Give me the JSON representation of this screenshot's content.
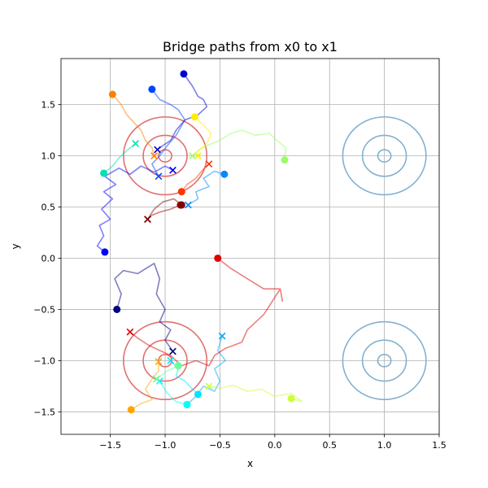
{
  "chart_data": {
    "type": "line",
    "title": "Bridge paths from x0 to x1",
    "xlabel": "x",
    "ylabel": "y",
    "xlim": [
      -1.95,
      1.5
    ],
    "ylim": [
      -1.72,
      1.95
    ],
    "x_ticks": [
      -1.5,
      -1.0,
      -0.5,
      0.0,
      0.5,
      1.0,
      1.5
    ],
    "x_tick_labels": [
      "−1.5",
      "−1.0",
      "−0.5",
      "0.0",
      "0.5",
      "1.0",
      "1.5"
    ],
    "y_ticks": [
      -1.5,
      -1.0,
      -0.5,
      0.0,
      0.5,
      1.0,
      1.5
    ],
    "y_tick_labels": [
      "−1.5",
      "−1.0",
      "−0.5",
      "0.0",
      "0.5",
      "1.0",
      "1.5"
    ],
    "grid": true,
    "contours": [
      {
        "center": [
          -1.0,
          1.0
        ],
        "radii": [
          0.06,
          0.2,
          0.38
        ],
        "color": "#e07070"
      },
      {
        "center": [
          -1.0,
          -1.0
        ],
        "radii": [
          0.06,
          0.2,
          0.38
        ],
        "color": "#e07070"
      },
      {
        "center": [
          1.0,
          1.0
        ],
        "radii": [
          0.06,
          0.2,
          0.38
        ],
        "color": "#82b1d2"
      },
      {
        "center": [
          1.0,
          -1.0
        ],
        "radii": [
          0.06,
          0.2,
          0.38
        ],
        "color": "#82b1d2"
      }
    ],
    "series": [
      {
        "color": "#0000ff",
        "start": [
          -1.55,
          0.06
        ],
        "end": [
          -0.93,
          0.86
        ],
        "path": [
          [
            -1.55,
            0.06
          ],
          [
            -1.62,
            0.12
          ],
          [
            -1.56,
            0.22
          ],
          [
            -1.6,
            0.32
          ],
          [
            -1.5,
            0.38
          ],
          [
            -1.58,
            0.48
          ],
          [
            -1.48,
            0.58
          ],
          [
            -1.56,
            0.65
          ],
          [
            -1.45,
            0.72
          ],
          [
            -1.55,
            0.8
          ],
          [
            -1.42,
            0.88
          ],
          [
            -1.32,
            0.82
          ],
          [
            -1.22,
            0.9
          ],
          [
            -1.1,
            0.84
          ],
          [
            -1.0,
            0.9
          ],
          [
            -0.93,
            0.86
          ]
        ]
      },
      {
        "color": "#000080",
        "start": [
          -1.44,
          -0.5
        ],
        "end": [
          -0.93,
          -0.91
        ],
        "path": [
          [
            -1.44,
            -0.5
          ],
          [
            -1.4,
            -0.35
          ],
          [
            -1.46,
            -0.2
          ],
          [
            -1.38,
            -0.12
          ],
          [
            -1.25,
            -0.15
          ],
          [
            -1.1,
            -0.05
          ],
          [
            -1.05,
            -0.2
          ],
          [
            -1.08,
            -0.35
          ],
          [
            -1.0,
            -0.5
          ],
          [
            -1.05,
            -0.62
          ],
          [
            -0.95,
            -0.7
          ],
          [
            -1.0,
            -0.8
          ],
          [
            -0.93,
            -0.91
          ]
        ]
      },
      {
        "color": "#0000cd",
        "start": [
          -0.83,
          1.8
        ],
        "end": [
          -1.07,
          1.06
        ],
        "path": [
          [
            -0.83,
            1.8
          ],
          [
            -0.75,
            1.68
          ],
          [
            -0.7,
            1.58
          ],
          [
            -0.65,
            1.55
          ],
          [
            -0.62,
            1.48
          ],
          [
            -0.7,
            1.4
          ],
          [
            -0.82,
            1.35
          ],
          [
            -0.9,
            1.25
          ],
          [
            -0.95,
            1.15
          ],
          [
            -1.02,
            1.1
          ],
          [
            -1.07,
            1.06
          ]
        ]
      },
      {
        "color": "#0044ff",
        "start": [
          -1.12,
          1.65
        ],
        "end": [
          -1.06,
          0.8
        ],
        "path": [
          [
            -1.12,
            1.65
          ],
          [
            -1.05,
            1.55
          ],
          [
            -0.95,
            1.5
          ],
          [
            -0.88,
            1.45
          ],
          [
            -0.82,
            1.35
          ],
          [
            -0.9,
            1.2
          ],
          [
            -0.98,
            1.1
          ],
          [
            -1.05,
            1.0
          ],
          [
            -1.12,
            0.92
          ],
          [
            -1.06,
            0.8
          ]
        ]
      },
      {
        "color": "#0088ff",
        "start": [
          -0.46,
          0.82
        ],
        "end": [
          -0.79,
          0.52
        ],
        "path": [
          [
            -0.46,
            0.82
          ],
          [
            -0.55,
            0.85
          ],
          [
            -0.65,
            0.78
          ],
          [
            -0.6,
            0.7
          ],
          [
            -0.72,
            0.65
          ],
          [
            -0.7,
            0.58
          ],
          [
            -0.79,
            0.52
          ]
        ]
      },
      {
        "color": "#00aaff",
        "start": [
          -0.8,
          -1.43
        ],
        "end": [
          -0.48,
          -0.76
        ],
        "path": [
          [
            -0.8,
            -1.43
          ],
          [
            -0.72,
            -1.35
          ],
          [
            -0.65,
            -1.25
          ],
          [
            -0.55,
            -1.3
          ],
          [
            -0.5,
            -1.2
          ],
          [
            -0.55,
            -1.08
          ],
          [
            -0.45,
            -1.0
          ],
          [
            -0.52,
            -0.9
          ],
          [
            -0.48,
            -0.76
          ]
        ]
      },
      {
        "color": "#00e5ff",
        "start": [
          -0.7,
          -1.33
        ],
        "end": [
          -0.95,
          -1.0
        ],
        "path": [
          [
            -0.7,
            -1.33
          ],
          [
            -0.75,
            -1.28
          ],
          [
            -0.82,
            -1.2
          ],
          [
            -0.9,
            -1.15
          ],
          [
            -0.88,
            -1.08
          ],
          [
            -0.95,
            -1.0
          ]
        ]
      },
      {
        "color": "#00ffff",
        "start": [
          -0.8,
          -1.43
        ],
        "end": [
          -1.05,
          -1.2
        ],
        "path": [
          [
            -0.8,
            -1.43
          ],
          [
            -0.9,
            -1.4
          ],
          [
            -0.98,
            -1.32
          ],
          [
            -1.05,
            -1.2
          ]
        ]
      },
      {
        "color": "#00e0b0",
        "start": [
          -1.56,
          0.83
        ],
        "end": [
          -1.27,
          1.12
        ],
        "path": [
          [
            -1.56,
            0.83
          ],
          [
            -1.48,
            0.9
          ],
          [
            -1.42,
            0.98
          ],
          [
            -1.35,
            1.05
          ],
          [
            -1.27,
            1.12
          ]
        ]
      },
      {
        "color": "#66ff99",
        "start": [
          -0.88,
          -1.05
        ],
        "end": [
          -1.08,
          -1.18
        ],
        "path": [
          [
            -0.88,
            -1.05
          ],
          [
            -0.98,
            -1.1
          ],
          [
            -1.08,
            -1.18
          ]
        ]
      },
      {
        "color": "#99ff66",
        "start": [
          0.09,
          0.96
        ],
        "end": [
          -0.75,
          1.0
        ],
        "path": [
          [
            0.09,
            0.96
          ],
          [
            0.1,
            1.08
          ],
          [
            0.02,
            1.15
          ],
          [
            -0.05,
            1.22
          ],
          [
            -0.18,
            1.2
          ],
          [
            -0.3,
            1.25
          ],
          [
            -0.4,
            1.22
          ],
          [
            -0.5,
            1.15
          ],
          [
            -0.62,
            1.1
          ],
          [
            -0.7,
            1.05
          ],
          [
            -0.75,
            1.0
          ]
        ]
      },
      {
        "color": "#ccff33",
        "start": [
          0.15,
          -1.37
        ],
        "end": [
          -0.6,
          -1.25
        ],
        "path": [
          [
            0.15,
            -1.37
          ],
          [
            0.25,
            -1.4
          ],
          [
            0.15,
            -1.32
          ],
          [
            0.0,
            -1.35
          ],
          [
            -0.12,
            -1.28
          ],
          [
            -0.25,
            -1.3
          ],
          [
            -0.38,
            -1.24
          ],
          [
            -0.5,
            -1.27
          ],
          [
            -0.6,
            -1.25
          ]
        ]
      },
      {
        "color": "#ffee00",
        "start": [
          -0.73,
          1.38
        ],
        "end": [
          -0.7,
          1.0
        ],
        "path": [
          [
            -0.73,
            1.38
          ],
          [
            -0.65,
            1.3
          ],
          [
            -0.58,
            1.22
          ],
          [
            -0.62,
            1.12
          ],
          [
            -0.7,
            1.05
          ],
          [
            -0.7,
            1.0
          ]
        ]
      },
      {
        "color": "#ffa500",
        "start": [
          -1.31,
          -1.48
        ],
        "end": [
          -1.06,
          -1.01
        ],
        "path": [
          [
            -1.31,
            -1.48
          ],
          [
            -1.22,
            -1.42
          ],
          [
            -1.12,
            -1.38
          ],
          [
            -1.18,
            -1.28
          ],
          [
            -1.12,
            -1.18
          ],
          [
            -1.06,
            -1.1
          ],
          [
            -1.06,
            -1.01
          ]
        ]
      },
      {
        "color": "#ff7f00",
        "start": [
          -1.48,
          1.6
        ],
        "end": [
          -1.1,
          1.0
        ],
        "path": [
          [
            -1.48,
            1.6
          ],
          [
            -1.4,
            1.5
          ],
          [
            -1.35,
            1.4
          ],
          [
            -1.28,
            1.32
          ],
          [
            -1.22,
            1.25
          ],
          [
            -1.18,
            1.15
          ],
          [
            -1.12,
            1.08
          ],
          [
            -1.1,
            1.0
          ]
        ]
      },
      {
        "color": "#ff3300",
        "start": [
          -0.85,
          0.65
        ],
        "end": [
          -0.6,
          0.92
        ],
        "path": [
          [
            -0.85,
            0.65
          ],
          [
            -0.8,
            0.72
          ],
          [
            -0.72,
            0.78
          ],
          [
            -0.66,
            0.86
          ],
          [
            -0.6,
            0.92
          ]
        ]
      },
      {
        "color": "#dd0000",
        "start": [
          -0.52,
          0.0
        ],
        "end": [
          -1.32,
          -0.72
        ],
        "path": [
          [
            -0.52,
            0.0
          ],
          [
            -0.4,
            -0.1
          ],
          [
            -0.25,
            -0.2
          ],
          [
            -0.1,
            -0.3
          ],
          [
            0.05,
            -0.3
          ],
          [
            0.07,
            -0.42
          ],
          [
            0.05,
            -0.3
          ],
          [
            -0.1,
            -0.55
          ],
          [
            -0.25,
            -0.7
          ],
          [
            -0.3,
            -0.82
          ],
          [
            -0.45,
            -0.88
          ],
          [
            -0.55,
            -0.95
          ],
          [
            -0.6,
            -1.05
          ],
          [
            -0.72,
            -1.0
          ],
          [
            -0.85,
            -1.05
          ],
          [
            -0.95,
            -0.95
          ],
          [
            -1.05,
            -0.9
          ],
          [
            -1.15,
            -0.85
          ],
          [
            -1.25,
            -0.78
          ],
          [
            -1.32,
            -0.72
          ]
        ]
      },
      {
        "color": "#aa0000",
        "start": [
          -0.86,
          0.52
        ],
        "end": [
          -1.16,
          0.38
        ],
        "path": [
          [
            -0.86,
            0.52
          ],
          [
            -0.95,
            0.48
          ],
          [
            -1.05,
            0.45
          ],
          [
            -1.12,
            0.42
          ],
          [
            -1.16,
            0.38
          ]
        ]
      },
      {
        "color": "#800000",
        "start": [
          -0.85,
          0.52
        ],
        "end": [
          -1.16,
          0.38
        ],
        "path": [
          [
            -0.85,
            0.52
          ],
          [
            -0.92,
            0.58
          ],
          [
            -1.02,
            0.55
          ],
          [
            -1.1,
            0.48
          ],
          [
            -1.16,
            0.38
          ]
        ]
      }
    ]
  }
}
